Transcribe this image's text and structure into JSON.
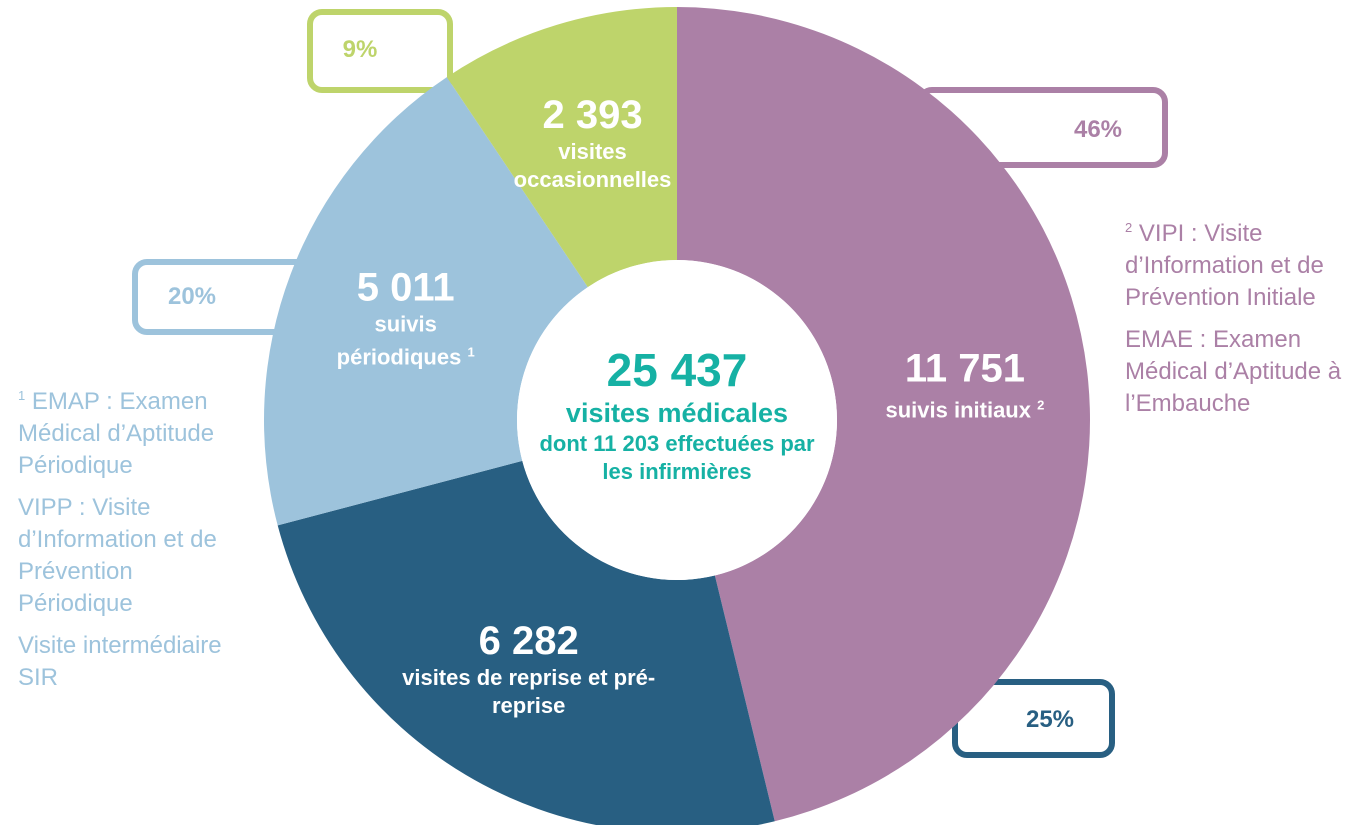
{
  "chart_data": {
    "type": "donut",
    "categories": [
      "suivis initiaux",
      "visites de reprise et pré-reprise",
      "suivis périodiques",
      "visites occasionnelles"
    ],
    "footnote_refs": [
      "2",
      null,
      "1",
      null
    ],
    "values": [
      11751,
      6282,
      5011,
      2393
    ],
    "value_labels": [
      "11 751",
      "6 282",
      "5 011",
      "2 393"
    ],
    "percentages": [
      46,
      25,
      20,
      9
    ],
    "percent_labels": [
      "46%",
      "25%",
      "20%",
      "9%"
    ],
    "colors": [
      "#ab80a6",
      "#285f82",
      "#9dc3dc",
      "#bed46b"
    ],
    "center": {
      "total": 25437,
      "total_label": "25 437",
      "line1": "visites médicales",
      "line2": "dont 11 203 effectuées par les infirmières"
    },
    "notes": {
      "left": [
        {
          "ref": "1",
          "text": "EMAP : Examen Médical d’Aptitude Périodique"
        },
        {
          "text": "VIPP : Visite d’Information et de Prévention Périodique"
        },
        {
          "text": "Visite intermédiaire SIR"
        }
      ],
      "right": [
        {
          "ref": "2",
          "text": "VIPI : Visite d’Information et de Prévention Initiale"
        },
        {
          "text": "EMAE : Examen Médical d’Aptitude à l’Embauche"
        }
      ]
    }
  }
}
